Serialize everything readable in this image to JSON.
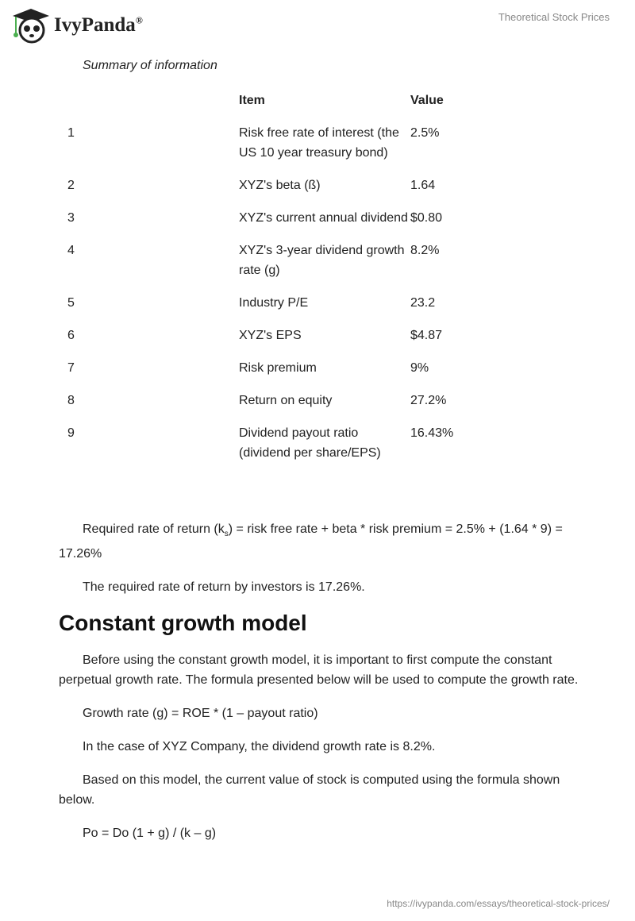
{
  "header": {
    "brand": "IvyPanda",
    "registered": "®",
    "doc_title": "Theoretical Stock Prices"
  },
  "caption": "Summary of information",
  "table": {
    "headers": [
      "",
      "Item",
      "Value"
    ],
    "rows": [
      [
        "1",
        "Risk free rate of interest (the US 10 year treasury bond)",
        "2.5%"
      ],
      [
        "2",
        "XYZ's beta (ß)",
        "1.64"
      ],
      [
        "3",
        "XYZ's current annual dividend",
        "$0.80"
      ],
      [
        "4",
        "XYZ's 3-year dividend growth rate (g)",
        "8.2%"
      ],
      [
        "5",
        "Industry P/E",
        "23.2"
      ],
      [
        "6",
        "XYZ's EPS",
        "$4.87"
      ],
      [
        "7",
        "Risk premium",
        "9%"
      ],
      [
        "8",
        "Return on equity",
        "27.2%"
      ],
      [
        "9",
        "Dividend payout ratio (dividend per share/EPS)",
        "16.43%"
      ]
    ]
  },
  "body": {
    "p1a": "Required rate of return (k",
    "p1sub": "s",
    "p1b": ") = risk free rate + beta * risk premium = 2.5% + (1.64 * 9) = 17.26%",
    "p2": "The required rate of return by investors is 17.26%.",
    "h2": "Constant growth model",
    "p3": "Before using the constant growth model, it is important to first compute the constant perpetual growth rate. The formula presented below will be used to compute the growth rate.",
    "p4": "Growth rate (g) = ROE * (1 – payout ratio)",
    "p5": "In the case of XYZ Company, the dividend growth rate is 8.2%.",
    "p6": "Based on this model, the current value of stock is computed using the formula shown below.",
    "p7": "Po = Do (1 + g) / (k – g)"
  },
  "footer": {
    "url": "https://ivypanda.com/essays/theoretical-stock-prices/"
  }
}
